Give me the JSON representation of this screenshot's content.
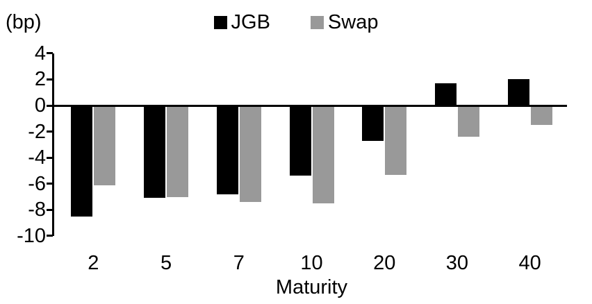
{
  "chart_data": {
    "type": "bar",
    "title": "",
    "unit_label": "(bp)",
    "xlabel": "Maturity",
    "ylabel": "",
    "categories": [
      "2",
      "5",
      "7",
      "10",
      "20",
      "30",
      "40"
    ],
    "series": [
      {
        "name": "JGB",
        "color": "#000000",
        "values": [
          -8.5,
          -7.1,
          -6.8,
          -5.4,
          -2.7,
          1.7,
          2.0
        ]
      },
      {
        "name": "Swap",
        "color": "#999999",
        "values": [
          -6.1,
          -7.0,
          -7.4,
          -7.5,
          -5.3,
          -2.4,
          -1.5
        ]
      }
    ],
    "y_ticks": [
      4,
      2,
      0,
      -2,
      -4,
      -6,
      -8,
      -10
    ],
    "ylim": [
      -10,
      4
    ],
    "legend_position": "top-center",
    "grid": false,
    "axis_color": "#000000"
  }
}
